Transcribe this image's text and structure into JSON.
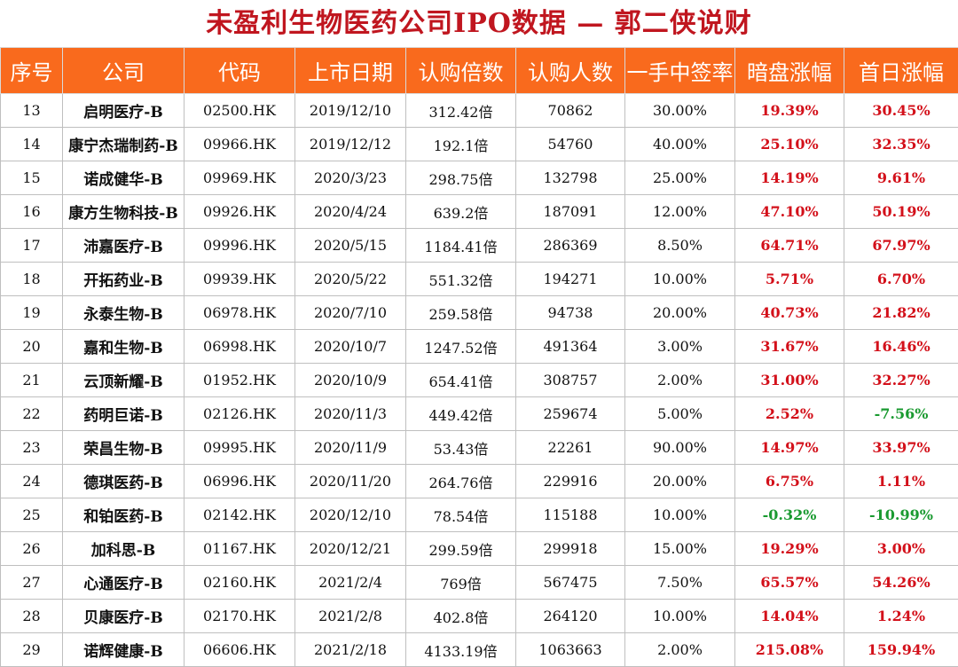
{
  "title": "未盈利生物医药公司IPO数据 — 郭二侠说财",
  "colors": {
    "header_bg": "#f96a1d",
    "title": "#c0161f",
    "positive": "#d3101a",
    "negative": "#1a9a30"
  },
  "headers": [
    "序号",
    "公司",
    "代码",
    "上市日期",
    "认购倍数",
    "认购人数",
    "一手中签率",
    "暗盘涨幅",
    "首日涨幅"
  ],
  "rows": [
    [
      "13",
      "启明医疗-B",
      "02500.HK",
      "2019/12/10",
      "312.42倍",
      "70862",
      "30.00%",
      "19.39%",
      "30.45%"
    ],
    [
      "14",
      "康宁杰瑞制药-B",
      "09966.HK",
      "2019/12/12",
      "192.1倍",
      "54760",
      "40.00%",
      "25.10%",
      "32.35%"
    ],
    [
      "15",
      "诺成健华-B",
      "09969.HK",
      "2020/3/23",
      "298.75倍",
      "132798",
      "25.00%",
      "14.19%",
      "9.61%"
    ],
    [
      "16",
      "康方生物科技-B",
      "09926.HK",
      "2020/4/24",
      "639.2倍",
      "187091",
      "12.00%",
      "47.10%",
      "50.19%"
    ],
    [
      "17",
      "沛嘉医疗-B",
      "09996.HK",
      "2020/5/15",
      "1184.41倍",
      "286369",
      "8.50%",
      "64.71%",
      "67.97%"
    ],
    [
      "18",
      "开拓药业-B",
      "09939.HK",
      "2020/5/22",
      "551.32倍",
      "194271",
      "10.00%",
      "5.71%",
      "6.70%"
    ],
    [
      "19",
      "永泰生物-B",
      "06978.HK",
      "2020/7/10",
      "259.58倍",
      "94738",
      "20.00%",
      "40.73%",
      "21.82%"
    ],
    [
      "20",
      "嘉和生物-B",
      "06998.HK",
      "2020/10/7",
      "1247.52倍",
      "491364",
      "3.00%",
      "31.67%",
      "16.46%"
    ],
    [
      "21",
      "云顶新耀-B",
      "01952.HK",
      "2020/10/9",
      "654.41倍",
      "308757",
      "2.00%",
      "31.00%",
      "32.27%"
    ],
    [
      "22",
      "药明巨诺-B",
      "02126.HK",
      "2020/11/3",
      "449.42倍",
      "259674",
      "5.00%",
      "2.52%",
      "-7.56%"
    ],
    [
      "23",
      "荣昌生物-B",
      "09995.HK",
      "2020/11/9",
      "53.43倍",
      "22261",
      "90.00%",
      "14.97%",
      "33.97%"
    ],
    [
      "24",
      "德琪医药-B",
      "06996.HK",
      "2020/11/20",
      "264.76倍",
      "229916",
      "20.00%",
      "6.75%",
      "1.11%"
    ],
    [
      "25",
      "和铂医药-B",
      "02142.HK",
      "2020/12/10",
      "78.54倍",
      "115188",
      "10.00%",
      "-0.32%",
      "-10.99%"
    ],
    [
      "26",
      "加科思-B",
      "01167.HK",
      "2020/12/21",
      "299.59倍",
      "299918",
      "15.00%",
      "19.29%",
      "3.00%"
    ],
    [
      "27",
      "心通医疗-B",
      "02160.HK",
      "2021/2/4",
      "769倍",
      "567475",
      "7.50%",
      "65.57%",
      "54.26%"
    ],
    [
      "28",
      "贝康医疗-B",
      "02170.HK",
      "2021/2/8",
      "402.8倍",
      "264120",
      "10.00%",
      "14.04%",
      "1.24%"
    ],
    [
      "29",
      "诺辉健康-B",
      "06606.HK",
      "2021/2/18",
      "4133.19倍",
      "1063663",
      "2.00%",
      "215.08%",
      "159.94%"
    ]
  ]
}
